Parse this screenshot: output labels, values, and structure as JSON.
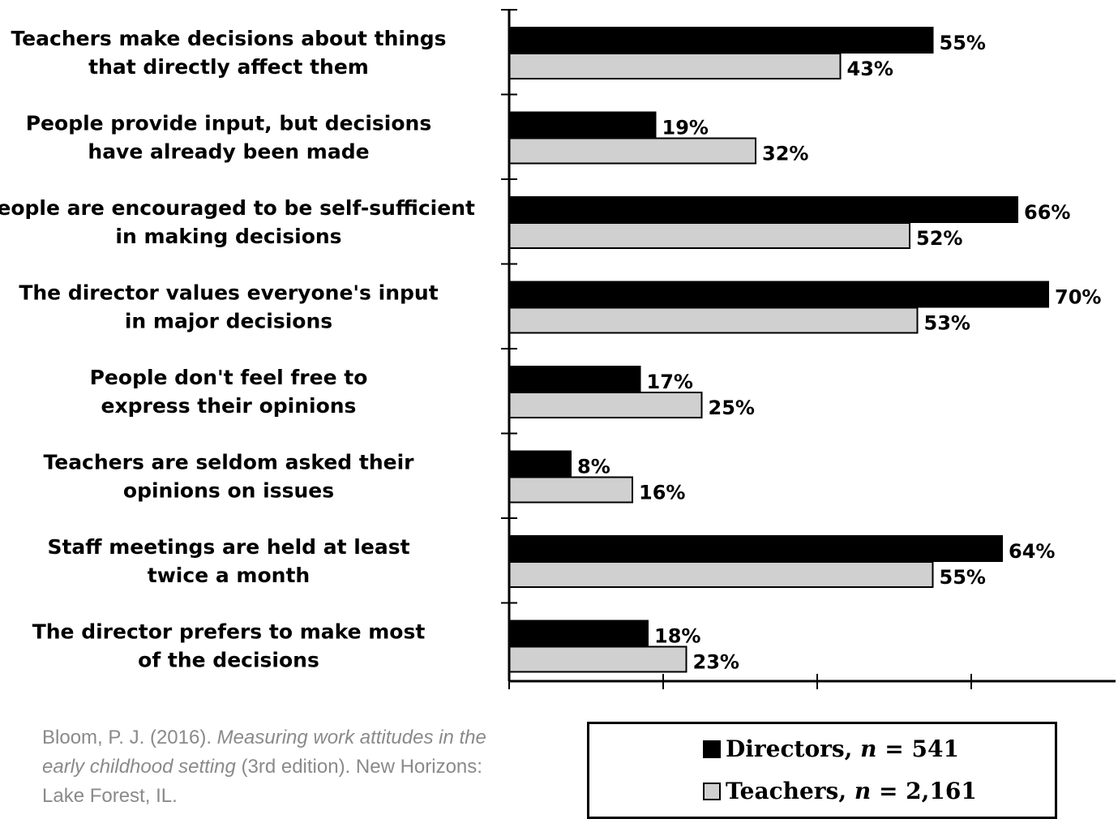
{
  "chart_data": {
    "type": "bar",
    "orientation": "horizontal",
    "categories": [
      [
        "Teachers make decisions about things",
        "that directly affect them"
      ],
      [
        "People provide input, but decisions",
        "have already been made"
      ],
      [
        "People are encouraged to be self-sufficient",
        "in making decisions"
      ],
      [
        "The director values everyone's input",
        "in major decisions"
      ],
      [
        "People don't feel free to",
        "express their opinions"
      ],
      [
        "Teachers are seldom asked their",
        "opinions on issues"
      ],
      [
        "Staff meetings are held at least",
        "twice a month"
      ],
      [
        "The director prefers to make most",
        "of the decisions"
      ]
    ],
    "series": [
      {
        "name": "Directors",
        "color": "#000000",
        "values": [
          55,
          19,
          66,
          70,
          17,
          8,
          64,
          18
        ],
        "labels": [
          "55%",
          "19%",
          "66%",
          "70%",
          "17%",
          "8%",
          "64%",
          "18%"
        ]
      },
      {
        "name": "Teachers",
        "color": "#d0d0d0",
        "values": [
          43,
          32,
          52,
          53,
          25,
          16,
          55,
          23
        ],
        "labels": [
          "43%",
          "32%",
          "52%",
          "53%",
          "25%",
          "16%",
          "55%",
          "23%"
        ]
      }
    ],
    "xlim": [
      0,
      80
    ],
    "grid": false,
    "legend_position": "bottom-right"
  },
  "legend": {
    "directors": {
      "name": "Directors,",
      "n_symbol": "n",
      "n_value": "= 541"
    },
    "teachers": {
      "name": "Teachers,",
      "n_symbol": "n",
      "n_value": "= 2,161"
    }
  },
  "citation": {
    "authors": "Bloom, P. J. (2016). ",
    "title": "Measuring work attitudes in the early childhood setting",
    "details": " (3rd edition). New Horizons: Lake Forest, IL."
  }
}
